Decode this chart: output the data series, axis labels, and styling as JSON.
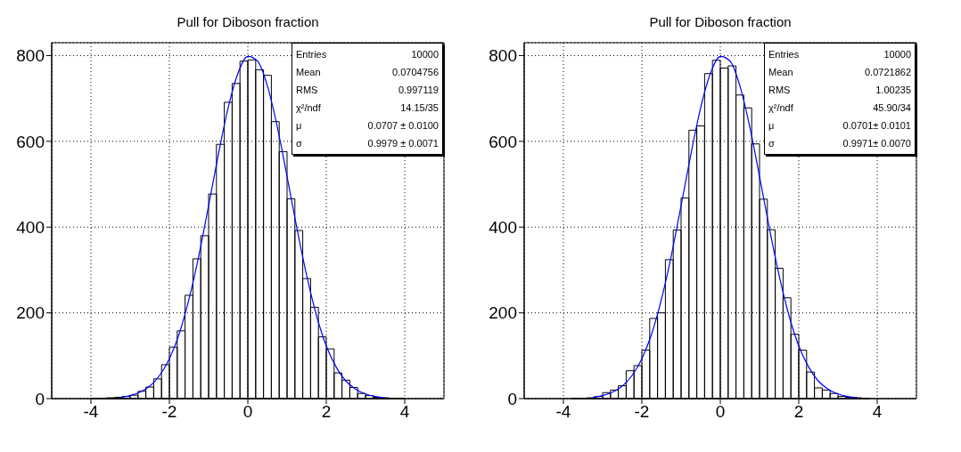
{
  "chart_data": [
    {
      "type": "histogram",
      "title": "Pull for Diboson fraction",
      "color": "#000000",
      "bins": [
        -5,
        -4.8,
        -4.6,
        -4.4,
        -4.2,
        -4,
        -3.8,
        -3.6,
        -3.4,
        -3.2,
        -3,
        -2.8,
        -2.6,
        -2.4,
        -2.2,
        -2,
        -1.8,
        -1.6,
        -1.4,
        -1.2,
        -1,
        -0.8,
        -0.6,
        -0.4,
        -0.2,
        0,
        0.2,
        0.4,
        0.6,
        0.8,
        1,
        1.2,
        1.4,
        1.6,
        1.8,
        2,
        2.2,
        2.4,
        2.6,
        2.8,
        3,
        3.2,
        3.4,
        3.6,
        3.8,
        4,
        4.2,
        4.4,
        4.6,
        4.8,
        5
      ],
      "values": [
        0,
        0,
        0,
        0,
        0,
        1,
        1,
        2,
        3,
        5,
        8,
        17,
        27,
        46,
        79,
        120,
        158,
        241,
        326,
        380,
        477,
        593,
        691,
        735,
        787,
        790,
        767,
        754,
        646,
        576,
        466,
        392,
        280,
        213,
        144,
        116,
        60,
        43,
        26,
        12,
        7,
        3,
        2,
        1,
        1,
        0,
        0,
        0,
        0,
        0
      ],
      "series": [
        {
          "type": "line",
          "color": "#0000ff",
          "x": [
            -3.25,
            -3,
            -2.75,
            -2.5,
            -2.25,
            -2,
            -1.75,
            -1.5,
            -1.25,
            -1,
            -0.75,
            -0.5,
            -0.25,
            0,
            0.25,
            0.5,
            0.75,
            1,
            1.25,
            1.5,
            1.75,
            2,
            2.25,
            2.5,
            2.75,
            3,
            3.25,
            3.5
          ],
          "values": [
            3,
            7,
            15,
            29,
            54,
            93,
            151,
            232,
            333,
            450,
            570,
            679,
            759,
            798,
            787,
            729,
            634,
            518,
            398,
            287,
            194,
            123,
            74,
            41,
            22,
            11,
            5,
            2
          ]
        }
      ],
      "xlim": [
        -5,
        5
      ],
      "ylim": [
        0,
        830
      ],
      "xticks": [
        -4,
        -2,
        0,
        2,
        4
      ],
      "yticks": [
        0,
        200,
        400,
        600,
        800
      ],
      "grid": true,
      "annotations": [
        "Entries",
        "10000",
        "Mean",
        "0.0704756",
        "RMS",
        "0.997119",
        "χ²/ndf",
        "14.15/35",
        "μ",
        "0.0707 ± 0.0100",
        "σ",
        "0.9979 ± 0.0071"
      ]
    },
    {
      "type": "histogram",
      "title": "Pull for Diboson fraction",
      "color": "#000000",
      "bins": [
        -5,
        -4.8,
        -4.6,
        -4.4,
        -4.2,
        -4,
        -3.8,
        -3.6,
        -3.4,
        -3.2,
        -3,
        -2.8,
        -2.6,
        -2.4,
        -2.2,
        -2,
        -1.8,
        -1.6,
        -1.4,
        -1.2,
        -1,
        -0.8,
        -0.6,
        -0.4,
        -0.2,
        0,
        0.2,
        0.4,
        0.6,
        0.8,
        1,
        1.2,
        1.4,
        1.6,
        1.8,
        2,
        2.2,
        2.4,
        2.6,
        2.8,
        3,
        3.2,
        3.4,
        3.6,
        3.8,
        4,
        4.2,
        4.4,
        4.6,
        4.8,
        5
      ],
      "values": [
        0,
        0,
        0,
        0,
        0,
        0,
        1,
        1,
        2,
        5,
        14,
        20,
        30,
        65,
        77,
        113,
        187,
        200,
        324,
        393,
        468,
        626,
        636,
        758,
        789,
        771,
        776,
        708,
        678,
        594,
        465,
        394,
        304,
        235,
        150,
        113,
        62,
        25,
        20,
        12,
        5,
        3,
        2,
        1,
        0,
        0,
        0,
        0,
        0,
        0
      ],
      "series": [
        {
          "type": "line",
          "color": "#0000ff",
          "x": [
            -3.25,
            -3,
            -2.75,
            -2.5,
            -2.25,
            -2,
            -1.75,
            -1.5,
            -1.25,
            -1,
            -0.75,
            -0.5,
            -0.25,
            0,
            0.25,
            0.5,
            0.75,
            1,
            1.25,
            1.5,
            1.75,
            2,
            2.25,
            2.5,
            2.75,
            3,
            3.25,
            3.5
          ],
          "values": [
            3,
            7,
            15,
            29,
            54,
            93,
            151,
            232,
            333,
            450,
            570,
            679,
            759,
            798,
            787,
            729,
            634,
            518,
            398,
            287,
            194,
            123,
            74,
            41,
            22,
            11,
            5,
            2
          ]
        }
      ],
      "xlim": [
        -5,
        5
      ],
      "ylim": [
        0,
        830
      ],
      "xticks": [
        -4,
        -2,
        0,
        2,
        4
      ],
      "yticks": [
        0,
        200,
        400,
        600,
        800
      ],
      "grid": true,
      "annotations": [
        "Entries",
        "10000",
        "Mean",
        "0.0721862",
        "RMS",
        "1.00235",
        "χ²/ndf",
        "45.90/34",
        "μ",
        "0.0701± 0.0101",
        "σ",
        "0.9971± 0.0070"
      ]
    }
  ]
}
